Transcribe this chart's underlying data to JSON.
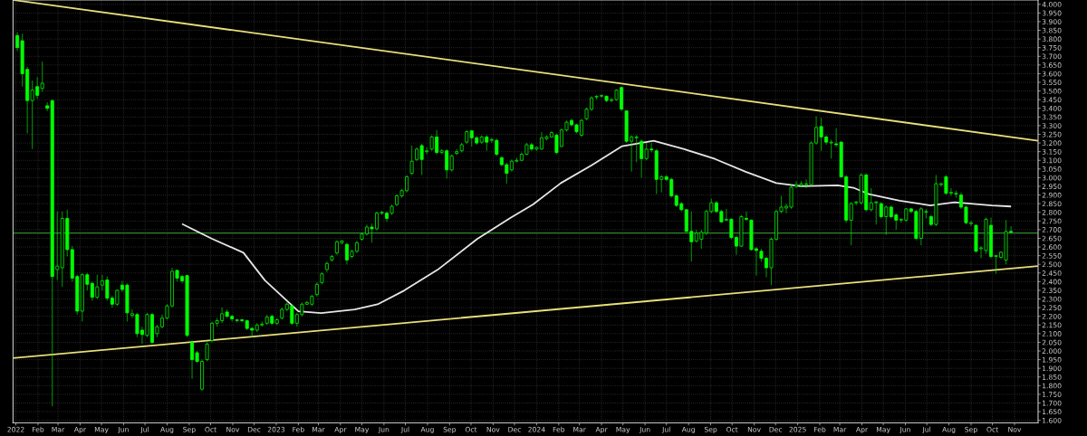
{
  "chart_data": {
    "type": "candlestick",
    "series": [
      {
        "color": "#00ff00",
        "x": [
          "2022-01-03",
          "2022-01-10",
          "2022-01-17",
          "2022-01-24",
          "2022-01-31",
          "2022-02-07",
          "2022-02-14",
          "2022-02-21",
          "2022-02-28",
          "2022-03-07",
          "2022-03-14",
          "2022-03-21",
          "2022-03-28",
          "2022-04-04",
          "2022-04-11",
          "2022-04-18",
          "2022-04-25",
          "2022-05-02",
          "2022-05-09",
          "2022-05-16",
          "2022-05-23",
          "2022-05-30",
          "2022-06-06",
          "2022-06-13",
          "2022-06-20",
          "2022-06-27",
          "2022-07-04",
          "2022-07-11",
          "2022-07-18",
          "2022-07-25",
          "2022-08-01",
          "2022-08-08",
          "2022-08-15",
          "2022-08-22",
          "2022-08-29",
          "2022-09-05",
          "2022-09-12",
          "2022-09-19",
          "2022-09-26",
          "2022-10-03",
          "2022-10-10",
          "2022-10-17",
          "2022-10-24",
          "2022-10-31",
          "2022-11-07",
          "2022-11-14",
          "2022-11-21",
          "2022-11-28",
          "2022-12-05",
          "2022-12-12",
          "2022-12-19",
          "2022-12-26",
          "2023-01-02",
          "2023-01-09",
          "2023-01-16",
          "2023-01-23",
          "2023-01-30",
          "2023-02-06",
          "2023-02-13",
          "2023-02-20",
          "2023-02-27",
          "2023-03-06",
          "2023-03-13",
          "2023-03-20",
          "2023-03-27",
          "2023-04-03",
          "2023-04-10",
          "2023-04-17",
          "2023-04-24",
          "2023-05-01",
          "2023-05-08",
          "2023-05-15",
          "2023-05-22",
          "2023-05-29",
          "2023-06-05",
          "2023-06-12",
          "2023-06-19",
          "2023-06-26",
          "2023-07-03",
          "2023-07-10",
          "2023-07-17",
          "2023-07-24",
          "2023-07-31",
          "2023-08-07",
          "2023-08-14",
          "2023-08-21",
          "2023-08-28",
          "2023-09-04",
          "2023-09-11",
          "2023-09-18",
          "2023-09-25",
          "2023-10-02",
          "2023-10-09",
          "2023-10-16",
          "2023-10-23",
          "2023-10-30",
          "2023-11-06",
          "2023-11-13",
          "2023-11-20",
          "2023-11-27",
          "2023-12-04",
          "2023-12-11",
          "2023-12-18",
          "2023-12-25",
          "2024-01-01",
          "2024-01-08",
          "2024-01-15",
          "2024-01-22",
          "2024-01-29",
          "2024-02-05",
          "2024-02-12",
          "2024-02-19",
          "2024-02-26",
          "2024-03-04",
          "2024-03-11",
          "2024-03-18",
          "2024-03-25",
          "2024-04-01",
          "2024-04-08",
          "2024-04-15",
          "2024-04-22",
          "2024-04-29",
          "2024-05-06",
          "2024-05-13",
          "2024-05-20",
          "2024-05-27",
          "2024-06-03",
          "2024-06-10",
          "2024-06-17",
          "2024-06-24",
          "2024-07-01",
          "2024-07-08",
          "2024-07-15",
          "2024-07-22",
          "2024-07-29",
          "2024-08-05",
          "2024-08-12",
          "2024-08-19",
          "2024-08-26",
          "2024-09-02",
          "2024-09-09",
          "2024-09-16",
          "2024-09-23",
          "2024-09-30",
          "2024-10-07",
          "2024-10-14",
          "2024-10-21",
          "2024-10-28",
          "2024-11-04",
          "2024-11-11",
          "2024-11-18",
          "2024-11-25",
          "2024-12-02",
          "2024-12-09",
          "2024-12-16",
          "2024-12-23",
          "2024-12-30",
          "2025-01-06",
          "2025-01-13",
          "2025-01-20",
          "2025-01-27",
          "2025-02-03",
          "2025-02-10",
          "2025-02-17",
          "2025-02-24",
          "2025-03-03",
          "2025-03-10",
          "2025-03-17",
          "2025-03-24",
          "2025-03-31",
          "2025-04-07",
          "2025-04-14",
          "2025-04-21",
          "2025-04-28",
          "2025-05-05",
          "2025-05-12",
          "2025-05-19",
          "2025-05-26",
          "2025-06-02",
          "2025-06-09",
          "2025-06-16",
          "2025-06-23",
          "2025-06-30",
          "2025-07-07",
          "2025-07-14",
          "2025-07-21",
          "2025-07-28",
          "2025-08-04",
          "2025-08-11",
          "2025-08-18",
          "2025-08-25",
          "2025-09-01",
          "2025-09-08",
          "2025-09-15",
          "2025-09-22",
          "2025-09-29",
          "2025-10-06",
          "2025-10-13",
          "2025-10-20",
          "2025-10-27"
        ],
        "ohlc": [
          [
            3820,
            3840,
            3730,
            3750
          ],
          [
            3790,
            3830,
            3525,
            3600
          ],
          [
            3625,
            3640,
            3255,
            3445
          ],
          [
            3445,
            3560,
            3165,
            3505
          ],
          [
            3525,
            3580,
            3455,
            3475
          ],
          [
            3515,
            3670,
            3495,
            3545
          ],
          [
            3415,
            3435,
            3385,
            3400
          ],
          [
            3445,
            3450,
            1680,
            2430
          ],
          [
            2470,
            2805,
            2410,
            2490
          ],
          [
            2480,
            2805,
            2370,
            2765
          ],
          [
            2765,
            2815,
            2545,
            2585
          ],
          [
            2585,
            2605,
            2400,
            2420
          ],
          [
            2430,
            2440,
            2210,
            2230
          ],
          [
            2230,
            2450,
            2170,
            2440
          ],
          [
            2440,
            2450,
            2350,
            2385
          ],
          [
            2390,
            2400,
            2290,
            2310
          ],
          [
            2310,
            2440,
            2300,
            2370
          ],
          [
            2380,
            2440,
            2350,
            2405
          ],
          [
            2410,
            2430,
            2290,
            2305
          ],
          [
            2305,
            2320,
            2250,
            2270
          ],
          [
            2270,
            2355,
            2260,
            2350
          ],
          [
            2380,
            2405,
            2340,
            2355
          ],
          [
            2380,
            2390,
            2170,
            2220
          ],
          [
            2205,
            2240,
            2190,
            2215
          ],
          [
            2210,
            2220,
            2080,
            2100
          ],
          [
            2120,
            2140,
            2040,
            2095
          ],
          [
            2090,
            2220,
            2080,
            2210
          ],
          [
            2210,
            2220,
            2040,
            2050
          ],
          [
            2100,
            2150,
            2080,
            2140
          ],
          [
            2140,
            2210,
            2130,
            2190
          ],
          [
            2190,
            2270,
            2180,
            2260
          ],
          [
            2260,
            2480,
            2250,
            2460
          ],
          [
            2465,
            2470,
            2400,
            2420
          ],
          [
            2430,
            2440,
            2390,
            2405
          ],
          [
            2435,
            2440,
            2080,
            2090
          ],
          [
            2050,
            2060,
            1840,
            1950
          ],
          [
            1990,
            2000,
            1930,
            1940
          ],
          [
            1780,
            1950,
            1770,
            1940
          ],
          [
            1950,
            2050,
            1940,
            2040
          ],
          [
            2060,
            2170,
            2050,
            2160
          ],
          [
            2160,
            2190,
            2140,
            2175
          ],
          [
            2175,
            2250,
            2160,
            2215
          ],
          [
            2225,
            2240,
            2190,
            2200
          ],
          [
            2200,
            2210,
            2170,
            2185
          ],
          [
            2175,
            2185,
            2165,
            2180
          ],
          [
            2180,
            2185,
            2165,
            2175
          ],
          [
            2175,
            2180,
            2120,
            2130
          ],
          [
            2130,
            2140,
            2080,
            2120
          ],
          [
            2120,
            2160,
            2110,
            2150
          ],
          [
            2150,
            2170,
            2140,
            2155
          ],
          [
            2160,
            2210,
            2150,
            2195
          ],
          [
            2200,
            2210,
            2150,
            2160
          ],
          [
            2160,
            2190,
            2150,
            2180
          ],
          [
            2190,
            2250,
            2180,
            2240
          ],
          [
            2240,
            2280,
            2230,
            2270
          ],
          [
            2260,
            2270,
            2150,
            2160
          ],
          [
            2160,
            2220,
            2140,
            2210
          ],
          [
            2210,
            2280,
            2200,
            2270
          ],
          [
            2270,
            2290,
            2265,
            2280
          ],
          [
            2270,
            2325,
            2260,
            2315
          ],
          [
            2325,
            2395,
            2315,
            2385
          ],
          [
            2395,
            2455,
            2385,
            2445
          ],
          [
            2470,
            2515,
            2455,
            2505
          ],
          [
            2525,
            2555,
            2515,
            2545
          ],
          [
            2565,
            2640,
            2555,
            2630
          ],
          [
            2625,
            2640,
            2615,
            2635
          ],
          [
            2615,
            2625,
            2500,
            2525
          ],
          [
            2545,
            2585,
            2535,
            2575
          ],
          [
            2575,
            2635,
            2565,
            2625
          ],
          [
            2645,
            2685,
            2635,
            2675
          ],
          [
            2675,
            2730,
            2665,
            2715
          ],
          [
            2715,
            2735,
            2625,
            2705
          ],
          [
            2705,
            2805,
            2695,
            2795
          ],
          [
            2795,
            2810,
            2785,
            2800
          ],
          [
            2795,
            2805,
            2745,
            2765
          ],
          [
            2795,
            2845,
            2785,
            2835
          ],
          [
            2845,
            2905,
            2835,
            2895
          ],
          [
            2895,
            2935,
            2885,
            2925
          ],
          [
            2925,
            3015,
            2915,
            3005
          ],
          [
            3025,
            3185,
            3015,
            3095
          ],
          [
            3105,
            3175,
            3095,
            3165
          ],
          [
            3185,
            3195,
            3015,
            3105
          ],
          [
            3150,
            3175,
            3135,
            3155
          ],
          [
            3165,
            3245,
            3155,
            3235
          ],
          [
            3235,
            3275,
            3135,
            3145
          ],
          [
            3145,
            3165,
            3135,
            3155
          ],
          [
            3155,
            3165,
            2995,
            3045
          ],
          [
            3045,
            3135,
            3035,
            3125
          ],
          [
            3140,
            3165,
            3130,
            3150
          ],
          [
            3155,
            3200,
            3145,
            3190
          ],
          [
            3205,
            3275,
            3195,
            3265
          ],
          [
            3270,
            3275,
            3180,
            3230
          ],
          [
            3230,
            3240,
            3190,
            3200
          ],
          [
            3205,
            3245,
            3195,
            3235
          ],
          [
            3235,
            3245,
            3155,
            3205
          ],
          [
            3215,
            3230,
            3200,
            3220
          ],
          [
            3215,
            3225,
            3125,
            3135
          ],
          [
            3115,
            3125,
            3065,
            3075
          ],
          [
            3075,
            3085,
            2965,
            3025
          ],
          [
            3045,
            3105,
            3035,
            3095
          ],
          [
            3095,
            3115,
            3090,
            3100
          ],
          [
            3100,
            3145,
            3095,
            3135
          ],
          [
            3135,
            3200,
            3130,
            3190
          ],
          [
            3190,
            3200,
            3155,
            3165
          ],
          [
            3165,
            3180,
            3155,
            3175
          ],
          [
            3165,
            3265,
            3160,
            3230
          ],
          [
            3225,
            3245,
            3215,
            3235
          ],
          [
            3235,
            3270,
            3230,
            3260
          ],
          [
            3245,
            3255,
            3135,
            3145
          ],
          [
            3180,
            3285,
            3175,
            3275
          ],
          [
            3275,
            3330,
            3265,
            3320
          ],
          [
            3330,
            3340,
            3295,
            3305
          ],
          [
            3305,
            3310,
            3255,
            3265
          ],
          [
            3245,
            3340,
            3235,
            3330
          ],
          [
            3340,
            3405,
            3330,
            3395
          ],
          [
            3395,
            3470,
            3385,
            3460
          ],
          [
            3465,
            3475,
            3450,
            3470
          ],
          [
            3470,
            3480,
            3460,
            3475
          ],
          [
            3470,
            3475,
            3435,
            3445
          ],
          [
            3445,
            3460,
            3435,
            3450
          ],
          [
            3450,
            3510,
            3445,
            3505
          ],
          [
            3520,
            3525,
            3385,
            3395
          ],
          [
            3385,
            3390,
            3200,
            3210
          ],
          [
            3210,
            3245,
            3035,
            3235
          ],
          [
            3230,
            3245,
            3090,
            3235
          ],
          [
            3210,
            3220,
            3000,
            3110
          ],
          [
            3110,
            3200,
            3100,
            3165
          ],
          [
            3165,
            3200,
            3145,
            3160
          ],
          [
            3155,
            3165,
            2905,
            2990
          ],
          [
            2990,
            3015,
            2915,
            3005
          ],
          [
            3005,
            3015,
            2980,
            2990
          ],
          [
            2990,
            3000,
            2885,
            2895
          ],
          [
            2895,
            2905,
            2830,
            2840
          ],
          [
            2850,
            2860,
            2805,
            2815
          ],
          [
            2815,
            2820,
            2685,
            2690
          ],
          [
            2690,
            2805,
            2515,
            2630
          ],
          [
            2635,
            2700,
            2625,
            2680
          ],
          [
            2645,
            2700,
            2590,
            2685
          ],
          [
            2680,
            2815,
            2670,
            2805
          ],
          [
            2805,
            2880,
            2795,
            2855
          ],
          [
            2855,
            2865,
            2795,
            2805
          ],
          [
            2805,
            2815,
            2740,
            2745
          ],
          [
            2755,
            2820,
            2750,
            2760
          ],
          [
            2760,
            2765,
            2645,
            2655
          ],
          [
            2655,
            2665,
            2555,
            2605
          ],
          [
            2605,
            2785,
            2600,
            2775
          ],
          [
            2765,
            2805,
            2750,
            2760
          ],
          [
            2755,
            2760,
            2580,
            2585
          ],
          [
            2590,
            2600,
            2435,
            2580
          ],
          [
            2575,
            2590,
            2515,
            2535
          ],
          [
            2535,
            2545,
            2425,
            2480
          ],
          [
            2480,
            2655,
            2380,
            2645
          ],
          [
            2645,
            2815,
            2635,
            2805
          ],
          [
            2805,
            2895,
            2795,
            2830
          ],
          [
            2825,
            2850,
            2795,
            2835
          ],
          [
            2830,
            2960,
            2820,
            2945
          ],
          [
            2950,
            2980,
            2940,
            2960
          ],
          [
            2955,
            2980,
            2945,
            2965
          ],
          [
            2960,
            2990,
            2940,
            2965
          ],
          [
            2960,
            3210,
            2950,
            3200
          ],
          [
            3200,
            3355,
            3190,
            3290
          ],
          [
            3295,
            3345,
            3155,
            3235
          ],
          [
            3235,
            3245,
            3190,
            3205
          ],
          [
            3200,
            3220,
            3110,
            3205
          ],
          [
            3195,
            3285,
            3180,
            3190
          ],
          [
            3205,
            3210,
            3000,
            3005
          ],
          [
            3005,
            3015,
            2740,
            2755
          ],
          [
            2755,
            2860,
            2610,
            2850
          ],
          [
            2855,
            2865,
            2840,
            2860
          ],
          [
            2855,
            3025,
            2845,
            3015
          ],
          [
            3015,
            3025,
            2805,
            2815
          ],
          [
            2815,
            2940,
            2805,
            2855
          ],
          [
            2855,
            2865,
            2730,
            2860
          ],
          [
            2850,
            2860,
            2765,
            2775
          ],
          [
            2775,
            2840,
            2670,
            2830
          ],
          [
            2830,
            2840,
            2765,
            2775
          ],
          [
            2785,
            2795,
            2700,
            2755
          ],
          [
            2755,
            2765,
            2740,
            2760
          ],
          [
            2755,
            2825,
            2745,
            2820
          ],
          [
            2820,
            2825,
            2795,
            2805
          ],
          [
            2805,
            2815,
            2640,
            2650
          ],
          [
            2650,
            2830,
            2610,
            2820
          ],
          [
            2800,
            2820,
            2765,
            2805
          ],
          [
            2775,
            2785,
            2720,
            2730
          ],
          [
            2730,
            3015,
            2720,
            2965
          ],
          [
            2960,
            2970,
            2950,
            2965
          ],
          [
            3005,
            3015,
            2900,
            2910
          ],
          [
            2910,
            2940,
            2895,
            2915
          ],
          [
            2905,
            2925,
            2885,
            2910
          ],
          [
            2900,
            2915,
            2820,
            2830
          ],
          [
            2830,
            2840,
            2730,
            2740
          ],
          [
            2735,
            2750,
            2720,
            2740
          ],
          [
            2725,
            2730,
            2570,
            2575
          ],
          [
            2590,
            2605,
            2535,
            2595
          ],
          [
            2580,
            2770,
            2560,
            2760
          ],
          [
            2725,
            2770,
            2535,
            2545
          ],
          [
            2545,
            2555,
            2445,
            2550
          ],
          [
            2540,
            2575,
            2530,
            2570
          ],
          [
            2525,
            2755,
            2500,
            2690
          ],
          [
            2690,
            2720,
            2680,
            2685
          ]
        ]
      },
      {
        "type": "line",
        "color": "#e6e6e6",
        "x": [
          "2022-08-23",
          "2022-10-03",
          "2022-11-16",
          "2022-12-16",
          "2023-02-01",
          "2023-03-05",
          "2023-04-21",
          "2023-05-23",
          "2023-06-29",
          "2023-08-15",
          "2023-10-10",
          "2023-11-25",
          "2023-12-27",
          "2024-02-04",
          "2024-03-18",
          "2024-04-30",
          "2024-06-13",
          "2024-07-26",
          "2024-09-07",
          "2024-10-20",
          "2024-12-02",
          "2025-01-06",
          "2025-02-26",
          "2025-03-20",
          "2025-04-11",
          "2025-05-24",
          "2025-07-06",
          "2025-08-09",
          "2025-09-30",
          "2025-10-26"
        ],
        "values": [
          2731,
          2647,
          2567,
          2408,
          2229,
          2219,
          2239,
          2269,
          2348,
          2468,
          2647,
          2767,
          2846,
          2969,
          3071,
          3182,
          3213,
          3164,
          3108,
          3034,
          2969,
          2951,
          2956,
          2942,
          2905,
          2867,
          2840,
          2858,
          2840,
          2834
        ]
      },
      {
        "type": "line",
        "color": "#e8e07a",
        "x": [
          "2021-12-28",
          "2025-12-04"
        ],
        "values": [
          4025,
          3213
        ]
      },
      {
        "type": "line",
        "color": "#e8e07a",
        "x": [
          "2021-12-28",
          "2025-12-04"
        ],
        "values": [
          1959,
          2490
        ]
      }
    ],
    "ref_lines": [
      {
        "axis": "y",
        "value": 2680,
        "color": "#2e8b2e"
      }
    ],
    "xlim": [
      "2021-12-28",
      "2025-12-04"
    ],
    "xticks": [
      {
        "value": "2022-01-01",
        "label": "2022"
      },
      {
        "value": "2022-02-01",
        "label": "Feb"
      },
      {
        "value": "2022-03-01",
        "label": "Mar"
      },
      {
        "value": "2022-04-01",
        "label": "Apr"
      },
      {
        "value": "2022-05-01",
        "label": "May"
      },
      {
        "value": "2022-06-01",
        "label": "Jun"
      },
      {
        "value": "2022-07-01",
        "label": "Jul"
      },
      {
        "value": "2022-08-01",
        "label": "Aug"
      },
      {
        "value": "2022-09-01",
        "label": "Sep"
      },
      {
        "value": "2022-10-01",
        "label": "Oct"
      },
      {
        "value": "2022-11-01",
        "label": "Nov"
      },
      {
        "value": "2022-12-01",
        "label": "Dec"
      },
      {
        "value": "2023-01-01",
        "label": "2023"
      },
      {
        "value": "2023-02-01",
        "label": "Feb"
      },
      {
        "value": "2023-03-01",
        "label": "Mar"
      },
      {
        "value": "2023-04-01",
        "label": "Apr"
      },
      {
        "value": "2023-05-01",
        "label": "May"
      },
      {
        "value": "2023-06-01",
        "label": "Jun"
      },
      {
        "value": "2023-07-01",
        "label": "Jul"
      },
      {
        "value": "2023-08-01",
        "label": "Aug"
      },
      {
        "value": "2023-09-01",
        "label": "Sep"
      },
      {
        "value": "2023-10-01",
        "label": "Oct"
      },
      {
        "value": "2023-11-01",
        "label": "Nov"
      },
      {
        "value": "2023-12-01",
        "label": "Dec"
      },
      {
        "value": "2024-01-01",
        "label": "2024"
      },
      {
        "value": "2024-02-01",
        "label": "Feb"
      },
      {
        "value": "2024-03-01",
        "label": "Mar"
      },
      {
        "value": "2024-04-01",
        "label": "Apr"
      },
      {
        "value": "2024-05-01",
        "label": "May"
      },
      {
        "value": "2024-06-01",
        "label": "Jun"
      },
      {
        "value": "2024-07-01",
        "label": "Jul"
      },
      {
        "value": "2024-08-01",
        "label": "Aug"
      },
      {
        "value": "2024-09-01",
        "label": "Sep"
      },
      {
        "value": "2024-10-01",
        "label": "Oct"
      },
      {
        "value": "2024-11-01",
        "label": "Nov"
      },
      {
        "value": "2024-12-01",
        "label": "Dec"
      },
      {
        "value": "2025-01-01",
        "label": "2025"
      },
      {
        "value": "2025-02-01",
        "label": "Feb"
      },
      {
        "value": "2025-03-01",
        "label": "Mar"
      },
      {
        "value": "2025-04-01",
        "label": "Apr"
      },
      {
        "value": "2025-05-01",
        "label": "May"
      },
      {
        "value": "2025-06-01",
        "label": "Jun"
      },
      {
        "value": "2025-07-01",
        "label": "Jul"
      },
      {
        "value": "2025-08-01",
        "label": "Aug"
      },
      {
        "value": "2025-09-01",
        "label": "Sep"
      },
      {
        "value": "2025-10-01",
        "label": "Oct"
      },
      {
        "value": "2025-11-01",
        "label": "Nov"
      }
    ],
    "ylim": [
      1585,
      4025
    ],
    "yticks": [
      {
        "value": 4000,
        "label": "4.000"
      },
      {
        "value": 3950,
        "label": "3.950"
      },
      {
        "value": 3900,
        "label": "3.900"
      },
      {
        "value": 3850,
        "label": "3.850"
      },
      {
        "value": 3800,
        "label": "3.800"
      },
      {
        "value": 3750,
        "label": "3.750"
      },
      {
        "value": 3700,
        "label": "3.700"
      },
      {
        "value": 3650,
        "label": "3.650"
      },
      {
        "value": 3600,
        "label": "3.600"
      },
      {
        "value": 3550,
        "label": "3.550"
      },
      {
        "value": 3500,
        "label": "3.500"
      },
      {
        "value": 3450,
        "label": "3.450"
      },
      {
        "value": 3400,
        "label": "3.400"
      },
      {
        "value": 3350,
        "label": "3.350"
      },
      {
        "value": 3300,
        "label": "3.300"
      },
      {
        "value": 3250,
        "label": "3.250"
      },
      {
        "value": 3200,
        "label": "3.200"
      },
      {
        "value": 3150,
        "label": "3.150"
      },
      {
        "value": 3100,
        "label": "3.100"
      },
      {
        "value": 3050,
        "label": "3.050"
      },
      {
        "value": 3000,
        "label": "3.000"
      },
      {
        "value": 2950,
        "label": "2.950"
      },
      {
        "value": 2900,
        "label": "2.900"
      },
      {
        "value": 2850,
        "label": "2.850"
      },
      {
        "value": 2800,
        "label": "2.800"
      },
      {
        "value": 2750,
        "label": "2.750"
      },
      {
        "value": 2700,
        "label": "2.700"
      },
      {
        "value": 2650,
        "label": "2.650"
      },
      {
        "value": 2600,
        "label": "2.600"
      },
      {
        "value": 2550,
        "label": "2.550"
      },
      {
        "value": 2500,
        "label": "2.500"
      },
      {
        "value": 2450,
        "label": "2.450"
      },
      {
        "value": 2400,
        "label": "2.400"
      },
      {
        "value": 2350,
        "label": "2.350"
      },
      {
        "value": 2300,
        "label": "2.300"
      },
      {
        "value": 2250,
        "label": "2.250"
      },
      {
        "value": 2200,
        "label": "2.200"
      },
      {
        "value": 2150,
        "label": "2.150"
      },
      {
        "value": 2100,
        "label": "2.100"
      },
      {
        "value": 2050,
        "label": "2.050"
      },
      {
        "value": 2000,
        "label": "2.000"
      },
      {
        "value": 1950,
        "label": "1.950"
      },
      {
        "value": 1900,
        "label": "1.900"
      },
      {
        "value": 1850,
        "label": "1.850"
      },
      {
        "value": 1800,
        "label": "1.800"
      },
      {
        "value": 1750,
        "label": "1.750"
      },
      {
        "value": 1700,
        "label": "1.700"
      },
      {
        "value": 1650,
        "label": "1.650"
      },
      {
        "value": 1600,
        "label": "1.600"
      }
    ],
    "grid": true,
    "line_style": "solid"
  }
}
